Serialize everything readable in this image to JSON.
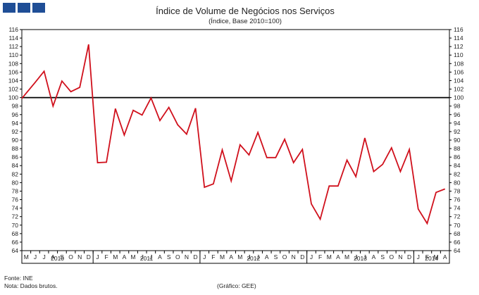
{
  "header": {
    "title": "Índice de Volume de Negócios nos Serviços",
    "subtitle": "(Índice, Base 2010=100)"
  },
  "footer": {
    "source": "Fonte: INE",
    "note": "Nota: Dados brutos.",
    "credit": "(Gráfico: GEE)"
  },
  "colors": {
    "series": "#d0101c",
    "reference": "#000000",
    "logo": "#1f4e96"
  },
  "chart_data": {
    "type": "line",
    "title": "Índice de Volume de Negócios nos Serviços",
    "subtitle": "(Índice, Base 2010=100)",
    "ylim": [
      64,
      116
    ],
    "yticks": [
      64,
      66,
      68,
      70,
      72,
      74,
      76,
      78,
      80,
      82,
      84,
      86,
      88,
      90,
      92,
      94,
      96,
      98,
      100,
      102,
      104,
      106,
      108,
      110,
      112,
      114,
      116
    ],
    "y_axes": "left and right",
    "grid": false,
    "reference_line": 100,
    "month_labels": [
      "M",
      "J",
      "J",
      "A",
      "S",
      "O",
      "N",
      "D",
      "J",
      "F",
      "M",
      "A",
      "M",
      "J",
      "J",
      "A",
      "S",
      "O",
      "N",
      "D",
      "J",
      "F",
      "M",
      "A",
      "M",
      "J",
      "J",
      "A",
      "S",
      "O",
      "N",
      "D",
      "J",
      "F",
      "M",
      "A",
      "M",
      "J",
      "J",
      "A",
      "S",
      "O",
      "N",
      "D",
      "J",
      "F",
      "M",
      "A"
    ],
    "years": [
      {
        "label": "2010",
        "start": 0,
        "end": 8
      },
      {
        "label": "2011",
        "start": 8,
        "end": 20
      },
      {
        "label": "2012",
        "start": 20,
        "end": 32
      },
      {
        "label": "2013",
        "start": 32,
        "end": 44
      },
      {
        "label": "2014",
        "start": 44,
        "end": 48
      }
    ],
    "x": [
      "2010-05",
      "2010-06",
      "2010-07",
      "2010-08",
      "2010-09",
      "2010-10",
      "2010-11",
      "2010-12",
      "2011-01",
      "2011-02",
      "2011-03",
      "2011-04",
      "2011-05",
      "2011-06",
      "2011-07",
      "2011-08",
      "2011-09",
      "2011-10",
      "2011-11",
      "2011-12",
      "2012-01",
      "2012-02",
      "2012-03",
      "2012-04",
      "2012-05",
      "2012-06",
      "2012-07",
      "2012-08",
      "2012-09",
      "2012-10",
      "2012-11",
      "2012-12",
      "2013-01",
      "2013-02",
      "2013-03",
      "2013-04",
      "2013-05",
      "2013-06",
      "2013-07",
      "2013-08",
      "2013-09",
      "2013-10",
      "2013-11",
      "2013-12",
      "2014-01",
      "2014-02",
      "2014-03",
      "2014-04"
    ],
    "series": [
      {
        "values": [
          99.8,
          103.6,
          106.2,
          98.0,
          103.9,
          101.4,
          102.4,
          112.5,
          84.7,
          84.8,
          97.4,
          91.2,
          97.0,
          95.9,
          99.9,
          94.6,
          97.7,
          93.6,
          91.4,
          97.5,
          78.9,
          79.7,
          87.7,
          80.4,
          88.9,
          86.5,
          91.8,
          85.9,
          85.9,
          90.2,
          84.7,
          87.8,
          75.0,
          71.4,
          79.2,
          79.2,
          85.3,
          81.4,
          90.5,
          82.6,
          84.3,
          88.2,
          82.6,
          87.8,
          73.8,
          70.4,
          77.7,
          78.5
        ]
      }
    ]
  }
}
